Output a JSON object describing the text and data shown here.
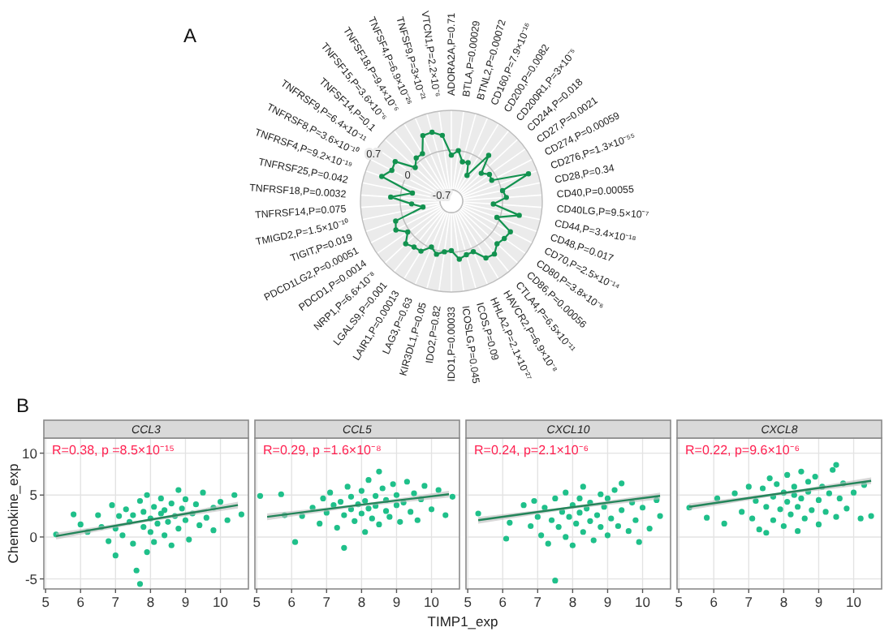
{
  "chart_data": [
    {
      "type": "radar",
      "annotations": [
        "A"
      ],
      "ylim": [
        -0.9,
        0.7
      ],
      "yticks": [
        -0.7,
        0,
        0.7
      ],
      "grid": true,
      "marker": "circle",
      "categories": [
        "ADORA2A,P=0.71",
        "BTLA,P=0.00029",
        "BTNL2,P=0.00072",
        "CD160,P=7.9×10⁻¹⁶",
        "CD200,P=0.0082",
        "CD200R1,P=3×10⁻⁵",
        "CD244,P=0.018",
        "CD27,P=0.0021",
        "CD274,P=0.00059",
        "CD276,P=1.3×10⁻⁵⁵",
        "CD28,P=0.34",
        "CD40,P=0.00055",
        "CD40LG,P=9.5×10⁻⁷",
        "CD44,P=3.4×10⁻¹⁸",
        "CD48,P=0.017",
        "CD70,P=2.5×10⁻¹⁴",
        "CD80,P=3.8×10⁻⁶",
        "CD86,P=0.00056",
        "CTLA4,P=6.5×10⁻¹¹",
        "HAVCR2,P=6.9×10⁻⁸",
        "HHLA2,P=2.1×10⁻²⁷",
        "ICOS,P=0.09",
        "ICOSLG,P=0.045",
        "IDO1,P=0.00033",
        "IDO2,P=0.82",
        "KIR3DL1,P=0.05",
        "LAG3,P=0.63",
        "LAIR1,P=0.00013",
        "LGALS9,P=0.001",
        "NRP1,P=6.6×10⁻⁸",
        "PDCD1,P=0.0014",
        "PDCD1LG2,P=0.00051",
        "TIGIT,P=0.019",
        "TMIGD2,P=1.5×10⁻¹⁰",
        "TNFRSF14,P=0.075",
        "TNFRSF18,P=0.0032",
        "TNFRSF25,P=0.042",
        "TNFRSF4,P=9.2×10⁻¹⁹",
        "TNFRSF8,P=3.6×10⁻¹⁰",
        "TNFRSF9,P=6.4×10⁻¹¹",
        "TNFSF14,P=0.1",
        "TNFSF15,P=3.6×10⁻⁶",
        "TNFSF18,P=9.4×10⁻⁶",
        "TNFSF4,P=6.9×10⁻²⁶",
        "TNFSF9,P=3×10⁻²¹",
        "VTCN1,P=2.2×10⁻⁶"
      ],
      "series": [
        {
          "color": "#12924f",
          "values": [
            -0.09,
            0.0,
            -0.18,
            -0.16,
            -0.37,
            0.14,
            -0.18,
            -0.08,
            -0.1,
            0.54,
            0.02,
            0.07,
            -0.16,
            0.32,
            -0.05,
            0.27,
            0.24,
            0.2,
            0.3,
            0.27,
            0.07,
            0.08,
            0.13,
            -0.03,
            0.0,
            0.07,
            -0.02,
            0.13,
            0.14,
            0.2,
            0.04,
            0.2,
            0.14,
            -0.39,
            -0.2,
            0.17,
            -0.2,
            0.4,
            0.28,
            0.31,
            -0.03,
            0.08,
            0.08,
            0.36,
            0.36,
            0.27
          ]
        }
      ]
    },
    {
      "type": "scatter",
      "title": "CCL3",
      "ylabel": "Chemokine_exp",
      "annotations": [
        "B",
        "R=0.38, p =8.5×10⁻¹⁵"
      ],
      "xlim": [
        4.95,
        10.8
      ],
      "ylim": [
        -6.2,
        11.8
      ],
      "xticks": [
        5,
        6,
        7,
        8,
        9,
        10
      ],
      "yticks": [
        -5,
        0,
        5,
        10
      ],
      "grid": true,
      "marker": "circle",
      "series": [
        {
          "type": "scatter",
          "color": "#1fc08a",
          "x": [
            5.3,
            5.8,
            6.0,
            6.2,
            6.5,
            6.6,
            6.8,
            6.9,
            7.0,
            7.0,
            7.1,
            7.2,
            7.3,
            7.4,
            7.5,
            7.5,
            7.6,
            7.7,
            7.7,
            7.8,
            7.8,
            7.9,
            7.9,
            8.0,
            8.0,
            8.1,
            8.1,
            8.2,
            8.3,
            8.3,
            8.4,
            8.4,
            8.5,
            8.6,
            8.6,
            8.7,
            8.8,
            8.8,
            8.9,
            9.0,
            9.0,
            9.1,
            9.2,
            9.3,
            9.4,
            9.5,
            9.6,
            9.8,
            9.8,
            10.0,
            10.2,
            10.4,
            10.6
          ],
          "values": [
            0.3,
            2.7,
            1.5,
            0.6,
            2.6,
            1.2,
            -0.5,
            3.8,
            -2.2,
            1.0,
            2.5,
            0.2,
            3.3,
            1.8,
            -0.8,
            2.6,
            -4.0,
            -5.6,
            4.3,
            1.2,
            3.0,
            -1.8,
            5.0,
            0.6,
            2.2,
            3.6,
            -0.6,
            1.6,
            4.6,
            2.8,
            0.2,
            3.2,
            1.8,
            4.0,
            -1.0,
            2.5,
            5.6,
            1.0,
            3.4,
            2.0,
            4.5,
            -0.3,
            2.8,
            3.9,
            1.4,
            5.3,
            2.3,
            0.8,
            3.5,
            4.2,
            2.0,
            5.0,
            2.7
          ]
        },
        {
          "type": "line",
          "color": "#23855a",
          "x": [
            5.3,
            7.9,
            10.5
          ],
          "marker": "none",
          "values": [
            0.1,
            2.0,
            3.8
          ],
          "lower": [
            -0.3,
            1.8,
            3.4
          ],
          "upper": [
            0.5,
            2.1,
            4.2
          ]
        }
      ]
    },
    {
      "type": "scatter",
      "title": "CCL5",
      "xlabel": "TIMP1_exp",
      "annotations": [
        "R=0.29, p =1.6×10⁻⁸"
      ],
      "xlim": [
        4.95,
        10.8
      ],
      "ylim": [
        -6.2,
        11.8
      ],
      "xticks": [
        5,
        6,
        7,
        8,
        9,
        10
      ],
      "yticks": [
        -5,
        0,
        5,
        10
      ],
      "grid": true,
      "marker": "circle",
      "tick_labels": "x",
      "series": [
        {
          "type": "scatter",
          "color": "#1fc08a",
          "x": [
            5.1,
            5.7,
            5.8,
            6.1,
            6.3,
            6.6,
            6.8,
            6.9,
            7.0,
            7.1,
            7.2,
            7.3,
            7.4,
            7.5,
            7.5,
            7.6,
            7.7,
            7.7,
            7.8,
            7.9,
            8.0,
            8.0,
            8.1,
            8.1,
            8.2,
            8.2,
            8.3,
            8.4,
            8.4,
            8.5,
            8.5,
            8.6,
            8.7,
            8.7,
            8.8,
            8.9,
            9.0,
            9.0,
            9.1,
            9.2,
            9.3,
            9.4,
            9.5,
            9.6,
            9.7,
            9.8,
            10.0,
            10.2,
            10.4,
            10.6
          ],
          "values": [
            4.9,
            5.1,
            2.6,
            -0.6,
            2.5,
            3.5,
            1.6,
            4.6,
            2.9,
            5.3,
            3.8,
            1.1,
            4.2,
            -1.3,
            2.6,
            6.0,
            3.3,
            4.8,
            1.9,
            3.9,
            5.5,
            2.8,
            0.6,
            4.3,
            3.4,
            6.8,
            2.2,
            4.9,
            3.7,
            7.8,
            1.5,
            5.8,
            3.1,
            4.4,
            2.4,
            6.3,
            3.8,
            5.0,
            1.8,
            4.1,
            6.6,
            3.0,
            5.2,
            2.0,
            4.5,
            6.1,
            3.3,
            5.6,
            2.6,
            4.8
          ]
        },
        {
          "type": "line",
          "color": "#23855a",
          "x": [
            5.3,
            7.9,
            10.5
          ],
          "marker": "none",
          "values": [
            2.4,
            3.8,
            5.1
          ],
          "lower": [
            2.0,
            3.6,
            4.7
          ],
          "upper": [
            2.8,
            3.9,
            5.5
          ]
        }
      ]
    },
    {
      "type": "scatter",
      "title": "CXCL10",
      "annotations": [
        "R=0.24, p=2.1×10⁻⁶"
      ],
      "xlim": [
        4.95,
        10.8
      ],
      "ylim": [
        -6.2,
        11.8
      ],
      "xticks": [
        5,
        6,
        7,
        8,
        9,
        10
      ],
      "yticks": [
        -5,
        0,
        5,
        10
      ],
      "grid": true,
      "marker": "circle",
      "tick_labels": "x",
      "series": [
        {
          "type": "scatter",
          "color": "#1fc08a",
          "x": [
            5.3,
            6.1,
            6.2,
            6.6,
            6.8,
            6.9,
            7.0,
            7.1,
            7.2,
            7.3,
            7.4,
            7.5,
            7.5,
            7.6,
            7.7,
            7.8,
            7.8,
            7.9,
            8.0,
            8.0,
            8.1,
            8.2,
            8.2,
            8.3,
            8.3,
            8.4,
            8.5,
            8.5,
            8.6,
            8.7,
            8.8,
            8.8,
            8.9,
            9.0,
            9.0,
            9.1,
            9.2,
            9.3,
            9.4,
            9.4,
            9.6,
            9.7,
            9.8,
            9.9,
            10.0,
            10.2,
            10.4,
            10.5
          ],
          "values": [
            2.8,
            -0.2,
            1.7,
            3.8,
            1.3,
            4.3,
            2.4,
            0.2,
            3.5,
            -0.8,
            2.0,
            -5.2,
            4.6,
            1.2,
            3.0,
            5.3,
            0.0,
            2.4,
            3.8,
            -1.0,
            1.6,
            4.6,
            2.9,
            0.6,
            6.0,
            3.4,
            1.9,
            4.1,
            -0.4,
            2.6,
            5.1,
            1.2,
            3.6,
            0.2,
            4.6,
            2.2,
            5.6,
            1.3,
            6.4,
            3.2,
            0.7,
            4.1,
            2.0,
            -0.6,
            3.5,
            1.0,
            4.4,
            2.5
          ]
        },
        {
          "type": "line",
          "color": "#23855a",
          "x": [
            5.3,
            7.9,
            10.5
          ],
          "marker": "none",
          "values": [
            2.0,
            3.5,
            4.9
          ],
          "lower": [
            1.6,
            3.3,
            4.5
          ],
          "upper": [
            2.4,
            3.6,
            5.3
          ]
        }
      ]
    },
    {
      "type": "scatter",
      "title": "CXCL8",
      "annotations": [
        "R=0.22, p=9.6×10⁻⁶"
      ],
      "xlim": [
        4.95,
        10.8
      ],
      "ylim": [
        -6.2,
        11.8
      ],
      "xticks": [
        5,
        6,
        7,
        8,
        9,
        10
      ],
      "yticks": [
        -5,
        0,
        5,
        10
      ],
      "grid": true,
      "marker": "circle",
      "tick_labels": "x",
      "series": [
        {
          "type": "scatter",
          "color": "#1fc08a",
          "x": [
            5.3,
            5.8,
            6.1,
            6.3,
            6.6,
            6.8,
            7.0,
            7.1,
            7.2,
            7.3,
            7.4,
            7.5,
            7.5,
            7.6,
            7.7,
            7.7,
            7.8,
            7.9,
            8.0,
            8.0,
            8.1,
            8.1,
            8.2,
            8.3,
            8.3,
            8.4,
            8.4,
            8.5,
            8.5,
            8.6,
            8.7,
            8.7,
            8.8,
            8.9,
            9.0,
            9.0,
            9.1,
            9.2,
            9.3,
            9.4,
            9.5,
            9.5,
            9.6,
            9.7,
            9.8,
            10.0,
            10.2,
            10.3,
            10.5
          ],
          "values": [
            3.5,
            2.3,
            4.6,
            1.6,
            5.2,
            3.0,
            6.0,
            2.2,
            4.3,
            0.9,
            5.8,
            0.5,
            3.6,
            7.0,
            4.8,
            2.0,
            6.3,
            3.3,
            5.3,
            1.3,
            7.4,
            4.2,
            2.7,
            6.0,
            5.0,
            0.7,
            3.6,
            7.8,
            4.6,
            2.2,
            6.6,
            5.4,
            3.2,
            7.2,
            1.5,
            4.4,
            6.0,
            3.0,
            5.2,
            8.0,
            2.4,
            8.6,
            4.6,
            6.4,
            3.4,
            5.3,
            2.2,
            6.2,
            2.5
          ]
        },
        {
          "type": "line",
          "color": "#23855a",
          "x": [
            5.3,
            7.9,
            10.5
          ],
          "marker": "none",
          "values": [
            3.6,
            5.2,
            6.7
          ],
          "lower": [
            3.2,
            5.0,
            6.3
          ],
          "upper": [
            4.0,
            5.3,
            7.1
          ]
        }
      ]
    }
  ]
}
